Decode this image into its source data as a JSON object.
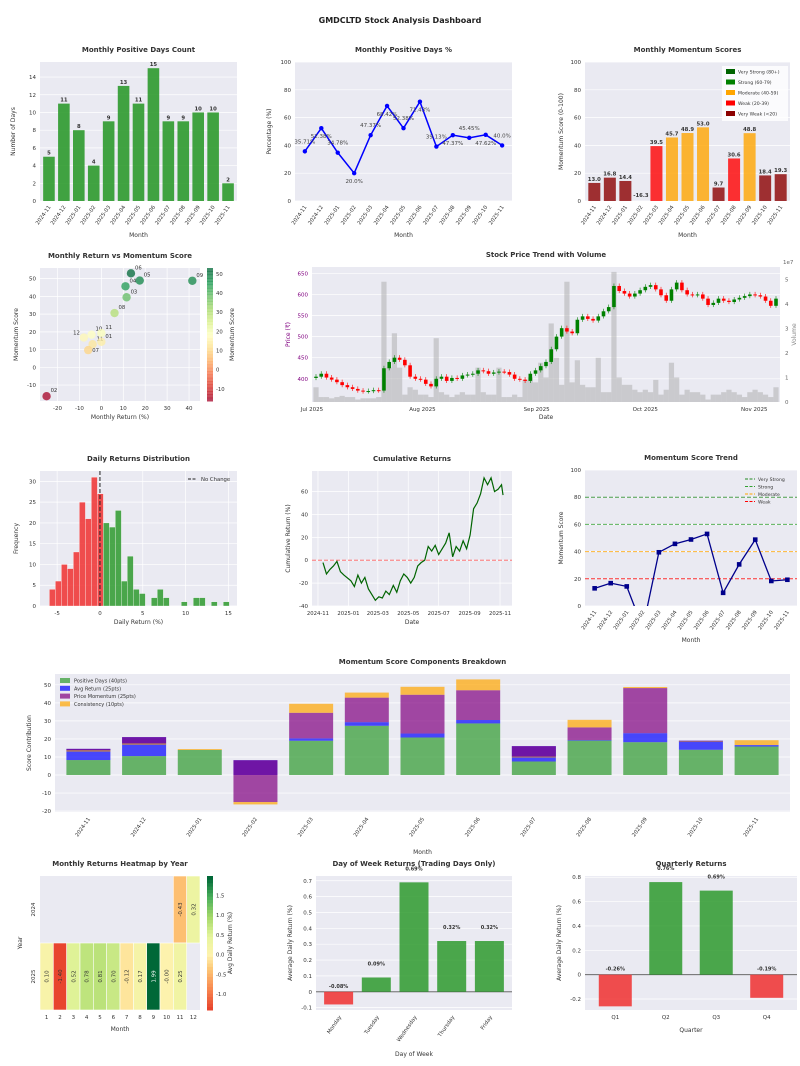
{
  "page_title": "GMDCLTD Stock Analysis Dashboard",
  "colors": {
    "positive": "#2e9a2e",
    "negative": "#f03030",
    "plot_bg": "#eaeaf2",
    "line_blue": "#0000ff",
    "navy": "#00008b",
    "dark_green": "#006400"
  },
  "chart_data": [
    {
      "type": "bar",
      "title": "Monthly Positive Days Count",
      "xlabel": "Month",
      "ylabel": "Number of Days",
      "categories": [
        "2024-11",
        "2024-12",
        "2025-01",
        "2025-02",
        "2025-03",
        "2025-04",
        "2025-05",
        "2025-06",
        "2025-07",
        "2025-08",
        "2025-09",
        "2025-10",
        "2025-11"
      ],
      "values": [
        5,
        11,
        8,
        4,
        9,
        13,
        11,
        15,
        9,
        9,
        10,
        10,
        2
      ],
      "value_labels": [
        "5",
        "11",
        "8",
        "4",
        "9",
        "13",
        "11",
        "15",
        "9",
        "9",
        "10",
        "10",
        "2"
      ],
      "yticks": [
        0,
        2,
        4,
        6,
        8,
        10,
        12,
        14
      ],
      "ylim": [
        0,
        15.7
      ],
      "grid": true
    },
    {
      "type": "line",
      "title": "Monthly Positive Days %",
      "xlabel": "Month",
      "ylabel": "Percentage (%)",
      "categories": [
        "2024-11",
        "2024-12",
        "2025-01",
        "2025-02",
        "2025-03",
        "2025-04",
        "2025-05",
        "2025-06",
        "2025-07",
        "2025-08",
        "2025-09",
        "2025-10",
        "2025-11"
      ],
      "values": [
        35.71,
        52.38,
        34.78,
        20.0,
        47.37,
        68.42,
        52.38,
        71.43,
        39.13,
        47.37,
        45.45,
        47.62,
        40.0
      ],
      "value_labels": [
        "35.71%",
        "52.38%",
        "34.78%",
        "20.0%",
        "47.37%",
        "68.42%",
        "52.38%",
        "71.43%",
        "39.13%",
        "47.37%",
        "45.45%",
        "47.62%",
        "40.0%"
      ],
      "yticks": [
        0,
        20,
        40,
        60,
        80,
        100
      ],
      "ylim": [
        0,
        100
      ],
      "grid": true
    },
    {
      "type": "bar",
      "title": "Monthly Momentum Scores",
      "xlabel": "Month",
      "ylabel": "Momentum Score (0-100)",
      "categories": [
        "2024-11",
        "2024-12",
        "2025-01",
        "2025-02",
        "2025-03",
        "2025-04",
        "2025-05",
        "2025-06",
        "2025-07",
        "2025-08",
        "2025-09",
        "2025-10",
        "2025-11"
      ],
      "values": [
        13.0,
        16.8,
        14.4,
        -16.3,
        39.5,
        45.7,
        48.9,
        53.0,
        9.7,
        30.6,
        48.8,
        18.4,
        19.3
      ],
      "value_labels": [
        "13.0",
        "16.8",
        "14.4",
        "-16.3",
        "39.5",
        "45.7",
        "48.9",
        "53.0",
        "9.7",
        "30.6",
        "48.8",
        "18.4",
        "19.3"
      ],
      "yticks": [
        0,
        20,
        40,
        60,
        80,
        100
      ],
      "ylim": [
        0,
        100
      ],
      "legend": [
        {
          "label": "Very Strong (80+)",
          "color": "#006400"
        },
        {
          "label": "Strong (60-79)",
          "color": "#008000"
        },
        {
          "label": "Moderate (40-59)",
          "color": "#ffa500"
        },
        {
          "label": "Weak (20-39)",
          "color": "#ff0000"
        },
        {
          "label": "Very Weak (<20)",
          "color": "#8b0000"
        }
      ],
      "legend_position": "top-right"
    },
    {
      "type": "scatter",
      "title": "Monthly Return vs Momentum Score",
      "xlabel": "Monthly Return (%)",
      "ylabel": "Momentum Score",
      "colorbar_label": "Momentum Score",
      "colorbar_ticks": [
        -10,
        0,
        10,
        20,
        30,
        40,
        50
      ],
      "points": [
        {
          "label": "11",
          "x": -4,
          "y": 13.0
        },
        {
          "label": "12",
          "x": -8,
          "y": 16.8
        },
        {
          "label": "01",
          "x": 0,
          "y": 14.4
        },
        {
          "label": "02",
          "x": -25,
          "y": -16.3
        },
        {
          "label": "03",
          "x": 11.5,
          "y": 39.5
        },
        {
          "label": "04",
          "x": 11,
          "y": 45.7
        },
        {
          "label": "05",
          "x": 17.5,
          "y": 48.9
        },
        {
          "label": "06",
          "x": 13.5,
          "y": 53.0
        },
        {
          "label": "07",
          "x": -6,
          "y": 9.7
        },
        {
          "label": "08",
          "x": 6,
          "y": 30.6
        },
        {
          "label": "09",
          "x": 41.5,
          "y": 48.8
        },
        {
          "label": "10",
          "x": -4.5,
          "y": 18.4
        },
        {
          "label": "11",
          "x": 0,
          "y": 19.3
        }
      ],
      "xticks": [
        -20,
        -10,
        0,
        10,
        20,
        30,
        40
      ],
      "yticks": [
        -10,
        0,
        10,
        20,
        30,
        40,
        50
      ],
      "xlim": [
        -28,
        45
      ],
      "ylim": [
        -19,
        56
      ]
    },
    {
      "type": "candlestick",
      "title": "Stock Price Trend with Volume",
      "xlabel": "Date",
      "ylabel": "Price (₹)",
      "ylabel2": "Volume",
      "volume_offset": "1e7",
      "xtick_labels": [
        "Jul 2025",
        "Aug 2025",
        "Sep 2025",
        "Oct 2025",
        "Nov 2025"
      ],
      "yticks": [
        400,
        450,
        500,
        550,
        600,
        650
      ],
      "ylim": [
        345,
        665
      ],
      "y2ticks": [
        0,
        1,
        2,
        3,
        4,
        5
      ],
      "y2lim": [
        0,
        5.5
      ],
      "close": [
        405,
        412,
        403,
        398,
        392,
        385,
        380,
        376,
        372,
        370,
        371,
        373,
        372,
        425,
        440,
        450,
        445,
        432,
        405,
        400,
        398,
        388,
        382,
        400,
        405,
        395,
        402,
        400,
        408,
        410,
        412,
        420,
        418,
        412,
        415,
        417,
        416,
        410,
        400,
        398,
        395,
        412,
        420,
        430,
        440,
        470,
        500,
        520,
        512,
        508,
        540,
        548,
        542,
        538,
        548,
        560,
        570,
        620,
        608,
        602,
        595,
        602,
        610,
        618,
        622,
        612,
        598,
        585,
        612,
        628,
        610,
        600,
        598,
        600,
        590,
        575,
        580,
        590,
        585,
        582,
        588,
        592,
        596,
        600,
        598,
        595,
        585,
        573,
        590
      ],
      "volume_1e7": [
        0.6,
        0.2,
        0.2,
        0.15,
        0.2,
        0.25,
        0.2,
        0.2,
        0.1,
        0.15,
        0.15,
        0.15,
        0.2,
        4.9,
        1.4,
        2.8,
        1.4,
        0.3,
        0.6,
        0.5,
        0.3,
        0.3,
        0.2,
        2.6,
        0.4,
        0.3,
        0.2,
        0.3,
        0.4,
        0.3,
        0.3,
        1.4,
        0.4,
        0.3,
        0.3,
        1.4,
        0.2,
        0.2,
        0.3,
        0.2,
        0.9,
        1.0,
        0.8,
        1.6,
        1.0,
        3.2,
        1.8,
        0.7,
        4.9,
        0.8,
        1.7,
        0.7,
        0.6,
        0.6,
        1.8,
        0.4,
        0.4,
        5.3,
        1.0,
        0.7,
        0.7,
        0.5,
        0.4,
        0.5,
        0.4,
        0.9,
        0.3,
        0.5,
        1.6,
        1.0,
        0.3,
        0.5,
        0.4,
        0.4,
        0.3,
        0.1,
        0.3,
        0.3,
        0.4,
        0.5,
        0.4,
        0.3,
        0.2,
        0.4,
        0.5,
        0.4,
        0.3,
        0.2,
        0.6
      ]
    },
    {
      "type": "histogram",
      "title": "Daily Returns Distribution",
      "xlabel": "Daily Return (%)",
      "ylabel": "Frequency",
      "bin_width": 0.7,
      "bins": [
        [
          -5.9,
          4
        ],
        [
          -5.2,
          6
        ],
        [
          -4.5,
          10
        ],
        [
          -3.8,
          9
        ],
        [
          -3.1,
          13
        ],
        [
          -2.4,
          25
        ],
        [
          -1.7,
          21
        ],
        [
          -1.0,
          31
        ],
        [
          -0.3,
          27
        ],
        [
          0.4,
          20
        ],
        [
          1.1,
          19
        ],
        [
          1.8,
          23
        ],
        [
          2.5,
          6
        ],
        [
          3.2,
          12
        ],
        [
          3.9,
          4
        ],
        [
          4.6,
          3
        ],
        [
          6.0,
          2
        ],
        [
          6.7,
          4
        ],
        [
          7.4,
          2
        ],
        [
          9.5,
          1
        ],
        [
          10.9,
          2
        ],
        [
          11.6,
          2
        ],
        [
          13.0,
          1
        ],
        [
          14.4,
          1
        ]
      ],
      "xticks": [
        -5,
        0,
        5,
        10,
        15
      ],
      "yticks": [
        0,
        5,
        10,
        15,
        20,
        25,
        30
      ],
      "xlim": [
        -7,
        16
      ],
      "ylim": [
        0,
        32.5
      ],
      "legend": [
        "No Change"
      ],
      "legend_position": "top-right"
    },
    {
      "type": "line",
      "title": "Cumulative Returns",
      "xlabel": "Date",
      "ylabel": "Cumulative Return (%)",
      "xtick_labels": [
        "2024-11",
        "2025-01",
        "2025-03",
        "2025-05",
        "2025-07",
        "2025-09",
        "2025-11"
      ],
      "yticks": [
        -40,
        -20,
        0,
        20,
        40,
        60
      ],
      "ylim": [
        -40,
        78
      ],
      "points": [
        [
          "2024-11-11",
          -2
        ],
        [
          "2024-11-18",
          -12
        ],
        [
          "2024-11-25",
          -8
        ],
        [
          "2024-12-02",
          -5
        ],
        [
          "2024-12-09",
          -1
        ],
        [
          "2024-12-16",
          -10
        ],
        [
          "2024-12-23",
          -13
        ],
        [
          "2025-01-06",
          -18
        ],
        [
          "2025-01-13",
          -23
        ],
        [
          "2025-01-20",
          -13
        ],
        [
          "2025-01-27",
          -20
        ],
        [
          "2025-02-03",
          -15
        ],
        [
          "2025-02-10",
          -25
        ],
        [
          "2025-02-17",
          -30
        ],
        [
          "2025-02-24",
          -35
        ],
        [
          "2025-03-03",
          -32
        ],
        [
          "2025-03-10",
          -33
        ],
        [
          "2025-03-17",
          -27
        ],
        [
          "2025-03-24",
          -30
        ],
        [
          "2025-04-01",
          -22
        ],
        [
          "2025-04-08",
          -28
        ],
        [
          "2025-04-15",
          -18
        ],
        [
          "2025-04-22",
          -12
        ],
        [
          "2025-04-29",
          -15
        ],
        [
          "2025-05-06",
          -20
        ],
        [
          "2025-05-13",
          -15
        ],
        [
          "2025-05-20",
          -5
        ],
        [
          "2025-05-27",
          -2
        ],
        [
          "2025-06-03",
          0
        ],
        [
          "2025-06-10",
          12
        ],
        [
          "2025-06-17",
          8
        ],
        [
          "2025-06-24",
          13
        ],
        [
          "2025-07-01",
          5
        ],
        [
          "2025-07-08",
          10
        ],
        [
          "2025-07-15",
          15
        ],
        [
          "2025-07-22",
          24
        ],
        [
          "2025-07-29",
          3
        ],
        [
          "2025-08-05",
          12
        ],
        [
          "2025-08-12",
          8
        ],
        [
          "2025-08-19",
          17
        ],
        [
          "2025-08-26",
          10
        ],
        [
          "2025-09-02",
          22
        ],
        [
          "2025-09-09",
          45
        ],
        [
          "2025-09-16",
          50
        ],
        [
          "2025-09-23",
          58
        ],
        [
          "2025-09-30",
          72
        ],
        [
          "2025-10-07",
          66
        ],
        [
          "2025-10-14",
          72
        ],
        [
          "2025-10-21",
          60
        ],
        [
          "2025-10-28",
          62
        ],
        [
          "2025-11-04",
          66
        ],
        [
          "2025-11-07",
          57
        ]
      ]
    },
    {
      "type": "line",
      "title": "Momentum Score Trend",
      "xlabel": "Month",
      "ylabel": "Momentum Score",
      "categories": [
        "2024-11",
        "2024-12",
        "2025-01",
        "2025-02",
        "2025-03",
        "2025-04",
        "2025-05",
        "2025-06",
        "2025-07",
        "2025-08",
        "2025-09",
        "2025-10",
        "2025-11"
      ],
      "values": [
        13.0,
        16.8,
        14.4,
        -16.3,
        39.5,
        45.7,
        48.9,
        53.0,
        9.7,
        30.6,
        48.8,
        18.4,
        19.3
      ],
      "yticks": [
        0,
        20,
        40,
        60,
        80,
        100
      ],
      "ylim": [
        0,
        100
      ],
      "thresholds": [
        {
          "label": "Very Strong",
          "value": 80,
          "color": "#228b22"
        },
        {
          "label": "Strong",
          "value": 60,
          "color": "#32a032"
        },
        {
          "label": "Moderate",
          "value": 40,
          "color": "#ffa500"
        },
        {
          "label": "Weak",
          "value": 20,
          "color": "#ff0000"
        }
      ],
      "legend_position": "top-right"
    },
    {
      "type": "bar",
      "stacked": true,
      "title": "Momentum Score Components Breakdown",
      "xlabel": "Month",
      "ylabel": "Score Contribution",
      "categories": [
        "2024-11",
        "2024-12",
        "2025-01",
        "2025-02",
        "2025-03",
        "2025-04",
        "2025-05",
        "2025-06",
        "2025-07",
        "2025-08",
        "2025-09",
        "2025-10",
        "2025-11"
      ],
      "series": [
        {
          "name": "Positive Days (40pts)",
          "color": "#2e9a2e",
          "values": [
            8.3,
            10.5,
            13.9,
            0,
            19,
            27.3,
            20.8,
            28.6,
            7.5,
            19.1,
            18.2,
            14,
            15.8
          ]
        },
        {
          "name": "Avg Return (25pts)",
          "color": "#0000ff",
          "values": [
            6.2,
            10.5,
            0,
            8.2,
            1.3,
            2,
            2.2,
            1.9,
            8.5,
            0.3,
            5,
            5,
            0.8
          ]
        },
        {
          "name": "Price Momentum (25pts)",
          "color": "#800080",
          "values": [
            -0.8,
            -3.5,
            0,
            -23.2,
            14.2,
            13.6,
            21.5,
            16.5,
            -5.8,
            7,
            25,
            -0.3,
            0
          ]
        },
        {
          "name": "Consistency (10pts)",
          "color": "#ffa500",
          "values": [
            -0.7,
            -0.7,
            0.5,
            -1.3,
            5,
            2.8,
            4.4,
            6,
            -0.5,
            4.2,
            0.6,
            -0.3,
            2.7
          ]
        }
      ],
      "yticks": [
        -20,
        -10,
        0,
        10,
        20,
        30,
        40,
        50
      ],
      "ylim": [
        -20.5,
        56
      ],
      "legend_position": "top-left"
    },
    {
      "type": "heatmap",
      "title": "Monthly Returns Heatmap by Year",
      "xlabel": "Month",
      "ylabel": "Year",
      "rows": [
        "2024",
        "2025"
      ],
      "cols": [
        "1",
        "2",
        "3",
        "4",
        "5",
        "6",
        "7",
        "8",
        "9",
        "10",
        "11",
        "12"
      ],
      "values": [
        [
          null,
          null,
          null,
          null,
          null,
          null,
          null,
          null,
          null,
          null,
          -0.43,
          0.32
        ],
        [
          0.1,
          -1.4,
          0.52,
          0.78,
          0.81,
          0.7,
          -0.12,
          0.17,
          1.99,
          -0.0,
          0.25,
          null
        ]
      ],
      "annotations": [
        [
          "",
          "",
          "",
          "",
          "",
          "",
          "",
          "",
          "",
          "",
          "-0.43",
          "0.32"
        ],
        [
          "0.10",
          "-1.40",
          "0.52",
          "0.78",
          "0.81",
          "0.70",
          "-0.12",
          "0.17",
          "1.99",
          "-0.00",
          "0.25",
          ""
        ]
      ],
      "colorbar_label": "Avg Daily Return (%)",
      "colorbar_ticks": [
        -1.0,
        -0.5,
        0.0,
        0.5,
        1.0,
        1.5
      ],
      "vlim": [
        -1.4,
        1.99
      ]
    },
    {
      "type": "bar",
      "title": "Day of Week Returns (Trading Days Only)",
      "xlabel": "Day of Week",
      "ylabel": "Average Daily Return (%)",
      "categories": [
        "Monday",
        "Tuesday",
        "Wednesday",
        "Thursday",
        "Friday"
      ],
      "values": [
        -0.08,
        0.09,
        0.69,
        0.32,
        0.32
      ],
      "value_labels": [
        "-0.08%",
        "0.09%",
        "0.69%",
        "0.32%",
        "0.32%"
      ],
      "yticks": [
        -0.1,
        0.0,
        0.1,
        0.2,
        0.3,
        0.4,
        0.5,
        0.6,
        0.7
      ],
      "ylim": [
        -0.115,
        0.73
      ]
    },
    {
      "type": "bar",
      "title": "Quarterly Returns",
      "xlabel": "Quarter",
      "ylabel": "Average Daily Return (%)",
      "categories": [
        "Q1",
        "Q2",
        "Q3",
        "Q4"
      ],
      "values": [
        -0.26,
        0.76,
        0.69,
        -0.19
      ],
      "value_labels": [
        "-0.26%",
        "0.76%",
        "0.69%",
        "-0.19%"
      ],
      "yticks": [
        -0.2,
        0.0,
        0.2,
        0.4,
        0.6,
        0.8
      ],
      "ylim": [
        -0.29,
        0.81
      ]
    }
  ]
}
